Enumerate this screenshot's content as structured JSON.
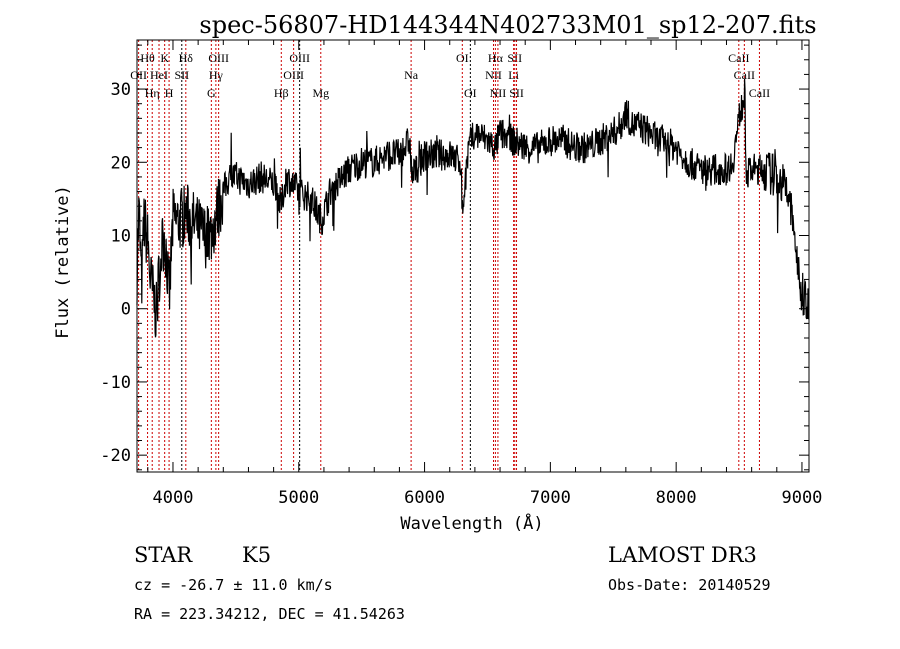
{
  "chart_data": {
    "type": "line",
    "title": "spec-56807-HD144344N402733M01_sp12-207.fits",
    "xlabel": "Wavelength (Å)",
    "ylabel": "Flux (relative)",
    "xlim": [
      3714,
      9056
    ],
    "ylim": [
      -22.3,
      36.7
    ],
    "x_ticks": [
      4000,
      5000,
      6000,
      7000,
      8000,
      9000
    ],
    "x_tick_labels": [
      "4000",
      "5000",
      "6000",
      "7000",
      "8000",
      "9000"
    ],
    "y_ticks": [
      30,
      20,
      10,
      0,
      -10,
      -20
    ],
    "y_tick_labels": [
      "30",
      "20",
      "10",
      "0",
      "-10",
      "-20"
    ],
    "grid": false,
    "series": [
      {
        "name": "flux",
        "x": [
          3714,
          3730,
          3750,
          3770,
          3800,
          3820,
          3850,
          3870,
          3890,
          3910,
          3930,
          3950,
          3970,
          3990,
          4000,
          4050,
          4100,
          4150,
          4200,
          4250,
          4300,
          4350,
          4400,
          4450,
          4500,
          4600,
          4700,
          4800,
          4860,
          4900,
          5000,
          5100,
          5180,
          5250,
          5300,
          5400,
          5500,
          5600,
          5700,
          5800,
          5880,
          5900,
          6000,
          6100,
          6200,
          6290,
          6300,
          6350,
          6400,
          6500,
          6563,
          6600,
          6700,
          6800,
          6900,
          7000,
          7100,
          7200,
          7300,
          7400,
          7500,
          7560,
          7600,
          7650,
          7700,
          7800,
          7850,
          7900,
          8000,
          8100,
          8200,
          8300,
          8400,
          8450,
          8500,
          8540,
          8560,
          8600,
          8700,
          8800,
          8850,
          8900,
          8950,
          8980,
          9000,
          9056
        ],
        "y": [
          5,
          14,
          3,
          12,
          9,
          4,
          1,
          -1,
          5,
          8,
          10,
          7,
          1,
          9,
          12,
          12,
          13,
          12,
          11,
          10,
          10,
          13,
          16,
          18,
          18,
          17,
          18,
          17,
          14,
          18,
          16,
          15,
          12,
          16,
          17,
          19,
          20,
          20,
          21,
          21,
          23,
          18,
          21,
          21,
          21,
          20,
          13,
          22,
          24,
          23,
          22,
          24,
          23,
          22,
          22,
          23,
          23,
          22,
          22,
          23,
          24,
          25,
          27,
          25,
          25,
          24,
          23,
          23,
          22,
          20,
          19,
          19,
          19,
          20,
          26,
          29,
          18,
          19,
          19,
          18,
          17,
          15,
          9,
          3,
          2,
          1
        ]
      }
    ],
    "line_markers": [
      {
        "label": "OII",
        "wavelength": 3727,
        "row": 2,
        "color": "#cc0000"
      },
      {
        "label": "Hθ",
        "wavelength": 3798,
        "row": 1,
        "color": "#cc0000"
      },
      {
        "label": "Hη",
        "wavelength": 3835,
        "row": 3,
        "color": "#cc0000"
      },
      {
        "label": "HeI",
        "wavelength": 3889,
        "row": 2,
        "color": "#cc0000"
      },
      {
        "label": "K",
        "wavelength": 3934,
        "row": 1,
        "color": "#cc0000"
      },
      {
        "label": "H",
        "wavelength": 3969,
        "row": 3,
        "color": "#cc0000"
      },
      {
        "label": "SII",
        "wavelength": 4070,
        "row": 2,
        "color": "#000000"
      },
      {
        "label": "Hδ",
        "wavelength": 4102,
        "row": 1,
        "color": "#cc0000"
      },
      {
        "label": "G",
        "wavelength": 4305,
        "row": 3,
        "color": "#cc0000"
      },
      {
        "label": "Hγ",
        "wavelength": 4341,
        "row": 2,
        "color": "#cc0000"
      },
      {
        "label": "OIII",
        "wavelength": 4363,
        "row": 1,
        "color": "#cc0000"
      },
      {
        "label": "Hβ",
        "wavelength": 4861,
        "row": 3,
        "color": "#cc0000"
      },
      {
        "label": "OIII",
        "wavelength": 4959,
        "row": 2,
        "color": "#cc0000"
      },
      {
        "label": "OIII",
        "wavelength": 5007,
        "row": 1,
        "color": "#000000"
      },
      {
        "label": "Mg",
        "wavelength": 5175,
        "row": 3,
        "color": "#cc0000"
      },
      {
        "label": "Na",
        "wavelength": 5893,
        "row": 2,
        "color": "#cc0000"
      },
      {
        "label": "OI",
        "wavelength": 6300,
        "row": 1,
        "color": "#cc0000"
      },
      {
        "label": "OI",
        "wavelength": 6364,
        "row": 3,
        "color": "#000000"
      },
      {
        "label": "NII",
        "wavelength": 6548,
        "row": 2,
        "color": "#cc0000"
      },
      {
        "label": "Hα",
        "wavelength": 6563,
        "row": 1,
        "color": "#cc0000"
      },
      {
        "label": "NII",
        "wavelength": 6583,
        "row": 3,
        "color": "#cc0000"
      },
      {
        "label": "Li",
        "wavelength": 6708,
        "row": 2,
        "color": "#cc0000"
      },
      {
        "label": "SII",
        "wavelength": 6717,
        "row": 1,
        "color": "#cc0000"
      },
      {
        "label": "SII",
        "wavelength": 6731,
        "row": 3,
        "color": "#cc0000"
      },
      {
        "label": "CaII",
        "wavelength": 8498,
        "row": 1,
        "color": "#cc0000"
      },
      {
        "label": "CaII",
        "wavelength": 8542,
        "row": 2,
        "color": "#cc0000"
      },
      {
        "label": "CaII",
        "wavelength": 8662,
        "row": 3,
        "color": "#cc0000"
      }
    ]
  },
  "info": {
    "class": "STAR",
    "subclass": "K5",
    "release": "LAMOST DR3",
    "cz": "cz = -26.7 ± 11.0 km/s",
    "obs_date": "Obs-Date: 20140529",
    "coords": "RA = 223.34212, DEC =  41.54263"
  }
}
